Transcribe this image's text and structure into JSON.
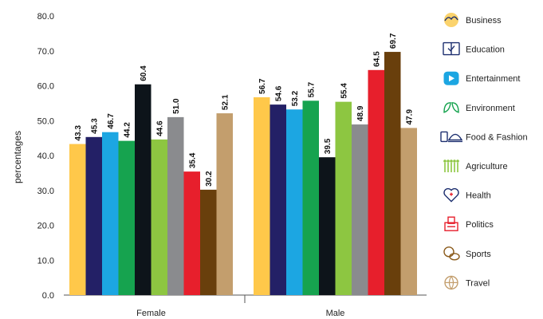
{
  "chart_data": {
    "type": "bar",
    "ylabel": "percentages",
    "ylim": [
      0,
      80
    ],
    "yticks": [
      "0.0",
      "10.0",
      "20.0",
      "30.0",
      "40.0",
      "50.0",
      "60.0",
      "70.0",
      "80.0"
    ],
    "grid": false,
    "legend_position": "right",
    "categories": [
      "Female",
      "Male"
    ],
    "series": [
      {
        "name": "Business",
        "color": "#ffc84a",
        "icon": "business-icon",
        "values": [
          43.3,
          56.7
        ]
      },
      {
        "name": "Education",
        "color": "#232066",
        "icon": "education-icon",
        "values": [
          45.3,
          54.6
        ]
      },
      {
        "name": "Entertainment",
        "color": "#1ca6e2",
        "icon": "entertainment-icon",
        "values": [
          46.7,
          53.2
        ]
      },
      {
        "name": "Environment",
        "color": "#16a34f",
        "icon": "environment-icon",
        "values": [
          44.2,
          55.7
        ]
      },
      {
        "name": "Food & Fashion",
        "color": "#0d141a",
        "icon": "food-fashion-icon",
        "values": [
          60.4,
          39.5
        ]
      },
      {
        "name": "Agriculture",
        "color": "#8dc641",
        "icon": "agriculture-icon",
        "values": [
          44.6,
          55.4
        ]
      },
      {
        "name": "Health",
        "color": "#8a8b8e",
        "icon": "health-icon",
        "values": [
          51.0,
          48.9
        ]
      },
      {
        "name": "Politics",
        "color": "#e71f2c",
        "icon": "politics-icon",
        "values": [
          35.4,
          64.5
        ]
      },
      {
        "name": "Sports",
        "color": "#693f0c",
        "icon": "sports-icon",
        "values": [
          30.2,
          69.7
        ]
      },
      {
        "name": "Travel",
        "color": "#c39e6d",
        "icon": "travel-icon",
        "values": [
          52.1,
          47.9
        ]
      }
    ]
  }
}
